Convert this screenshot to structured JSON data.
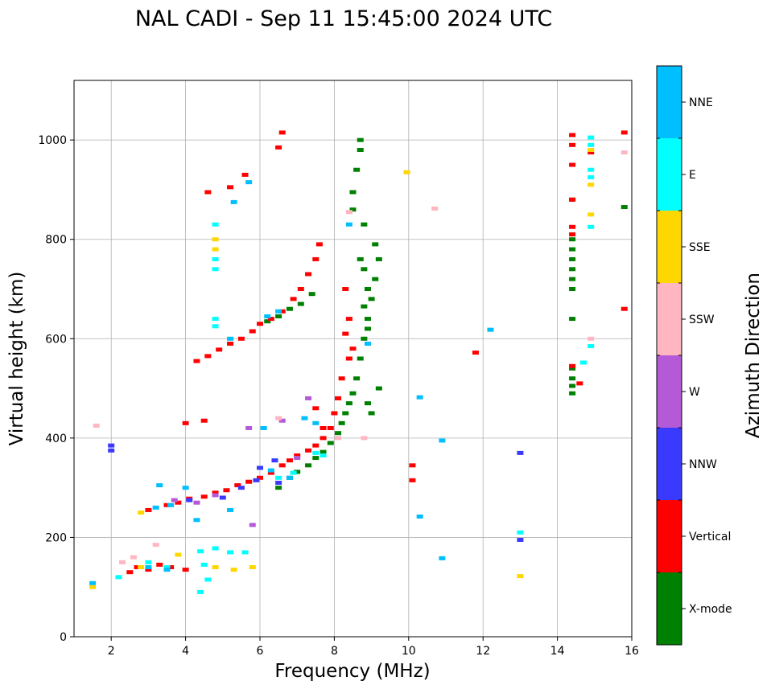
{
  "chart_data": {
    "type": "scatter",
    "title": "NAL CADI - Sep 11 15:45:00 2024 UTC",
    "xlabel": "Frequency (MHz)",
    "ylabel": "Virtual height (km)",
    "xlim": [
      1,
      16
    ],
    "ylim": [
      0,
      1120
    ],
    "xticks": [
      "2",
      "4",
      "6",
      "8",
      "10",
      "12",
      "14",
      "16"
    ],
    "yticks": [
      "0",
      "200",
      "400",
      "600",
      "800",
      "1000"
    ],
    "grid": true,
    "colorbar": {
      "label": "Azimuth Direction",
      "categories": [
        {
          "name": "X-mode",
          "color": "#008000"
        },
        {
          "name": "Vertical",
          "color": "#ff0000"
        },
        {
          "name": "NNW",
          "color": "#3a3aff"
        },
        {
          "name": "W",
          "color": "#b55ad6"
        },
        {
          "name": "SSW",
          "color": "#ffb6c1"
        },
        {
          "name": "SSE",
          "color": "#ffd700"
        },
        {
          "name": "E",
          "color": "#00ffff"
        },
        {
          "name": "NNE",
          "color": "#00bfff"
        }
      ]
    },
    "series": [
      {
        "name": "X-mode",
        "points": [
          [
            6.5,
            300
          ],
          [
            6.8,
            320
          ],
          [
            7.0,
            332
          ],
          [
            7.3,
            345
          ],
          [
            7.5,
            360
          ],
          [
            7.7,
            372
          ],
          [
            7.9,
            390
          ],
          [
            8.1,
            410
          ],
          [
            8.2,
            430
          ],
          [
            8.3,
            450
          ],
          [
            8.4,
            470
          ],
          [
            8.5,
            490
          ],
          [
            8.6,
            520
          ],
          [
            8.7,
            560
          ],
          [
            8.8,
            600
          ],
          [
            8.9,
            640
          ],
          [
            9.0,
            680
          ],
          [
            9.1,
            720
          ],
          [
            9.2,
            760
          ],
          [
            9.1,
            790
          ],
          [
            9.0,
            450
          ],
          [
            8.9,
            470
          ],
          [
            9.2,
            500
          ],
          [
            6.2,
            635
          ],
          [
            6.5,
            645
          ],
          [
            6.8,
            660
          ],
          [
            7.1,
            670
          ],
          [
            7.4,
            690
          ],
          [
            8.7,
            1000
          ],
          [
            8.7,
            980
          ],
          [
            8.6,
            940
          ],
          [
            8.5,
            895
          ],
          [
            8.5,
            860
          ],
          [
            8.8,
            830
          ],
          [
            8.7,
            760
          ],
          [
            8.8,
            740
          ],
          [
            8.9,
            700
          ],
          [
            8.8,
            665
          ],
          [
            8.9,
            620
          ],
          [
            14.4,
            700
          ],
          [
            14.4,
            720
          ],
          [
            14.4,
            740
          ],
          [
            14.4,
            760
          ],
          [
            14.4,
            780
          ],
          [
            14.4,
            800
          ],
          [
            14.4,
            880
          ],
          [
            14.4,
            640
          ],
          [
            14.4,
            540
          ],
          [
            14.4,
            520
          ],
          [
            14.4,
            505
          ],
          [
            14.4,
            490
          ],
          [
            15.8,
            865
          ]
        ]
      },
      {
        "name": "Vertical",
        "points": [
          [
            2.5,
            130
          ],
          [
            2.7,
            140
          ],
          [
            3.0,
            135
          ],
          [
            3.3,
            145
          ],
          [
            3.6,
            140
          ],
          [
            4.0,
            135
          ],
          [
            3.0,
            255
          ],
          [
            3.5,
            265
          ],
          [
            3.8,
            270
          ],
          [
            4.1,
            278
          ],
          [
            4.5,
            282
          ],
          [
            4.8,
            290
          ],
          [
            5.1,
            295
          ],
          [
            5.4,
            305
          ],
          [
            5.7,
            312
          ],
          [
            6.0,
            320
          ],
          [
            6.3,
            330
          ],
          [
            6.6,
            345
          ],
          [
            6.8,
            355
          ],
          [
            7.0,
            365
          ],
          [
            7.3,
            375
          ],
          [
            7.5,
            385
          ],
          [
            7.7,
            400
          ],
          [
            7.9,
            420
          ],
          [
            8.0,
            450
          ],
          [
            8.1,
            480
          ],
          [
            8.2,
            520
          ],
          [
            8.4,
            560
          ],
          [
            8.5,
            580
          ],
          [
            8.3,
            610
          ],
          [
            8.4,
            640
          ],
          [
            8.3,
            700
          ],
          [
            4.3,
            555
          ],
          [
            4.6,
            565
          ],
          [
            4.9,
            578
          ],
          [
            5.2,
            590
          ],
          [
            5.5,
            600
          ],
          [
            5.8,
            615
          ],
          [
            6.0,
            630
          ],
          [
            6.3,
            640
          ],
          [
            6.6,
            655
          ],
          [
            6.9,
            680
          ],
          [
            7.1,
            700
          ],
          [
            7.3,
            730
          ],
          [
            7.5,
            760
          ],
          [
            7.6,
            790
          ],
          [
            4.0,
            430
          ],
          [
            4.5,
            435
          ],
          [
            7.5,
            460
          ],
          [
            7.7,
            420
          ],
          [
            6.6,
            1015
          ],
          [
            6.5,
            985
          ],
          [
            5.6,
            930
          ],
          [
            5.2,
            905
          ],
          [
            4.6,
            895
          ],
          [
            10.1,
            345
          ],
          [
            10.1,
            315
          ],
          [
            11.8,
            572
          ],
          [
            15.8,
            660
          ],
          [
            15.8,
            1015
          ],
          [
            14.4,
            1010
          ],
          [
            14.4,
            990
          ],
          [
            14.4,
            950
          ],
          [
            14.4,
            880
          ],
          [
            14.4,
            825
          ],
          [
            14.4,
            810
          ],
          [
            14.6,
            510
          ],
          [
            14.4,
            545
          ],
          [
            14.9,
            975
          ]
        ]
      },
      {
        "name": "NNW",
        "points": [
          [
            5.0,
            280
          ],
          [
            5.5,
            300
          ],
          [
            6.0,
            340
          ],
          [
            6.5,
            310
          ],
          [
            6.4,
            355
          ],
          [
            4.1,
            275
          ],
          [
            2.0,
            385
          ],
          [
            2.0,
            375
          ],
          [
            13.0,
            370
          ],
          [
            13.0,
            195
          ],
          [
            5.9,
            315
          ]
        ]
      },
      {
        "name": "W",
        "points": [
          [
            3.7,
            275
          ],
          [
            4.8,
            285
          ],
          [
            5.7,
            420
          ],
          [
            6.6,
            435
          ],
          [
            7.0,
            360
          ],
          [
            7.3,
            480
          ],
          [
            5.8,
            225
          ],
          [
            4.3,
            270
          ]
        ]
      },
      {
        "name": "SSW",
        "points": [
          [
            2.3,
            150
          ],
          [
            2.6,
            160
          ],
          [
            3.2,
            185
          ],
          [
            6.5,
            440
          ],
          [
            8.1,
            400
          ],
          [
            8.4,
            855
          ],
          [
            10.7,
            862
          ],
          [
            8.8,
            400
          ],
          [
            14.9,
            600
          ],
          [
            15.8,
            975
          ],
          [
            1.6,
            425
          ]
        ]
      },
      {
        "name": "SSE",
        "points": [
          [
            1.5,
            100
          ],
          [
            2.8,
            140
          ],
          [
            4.8,
            140
          ],
          [
            5.3,
            135
          ],
          [
            5.8,
            140
          ],
          [
            4.8,
            780
          ],
          [
            4.8,
            800
          ],
          [
            14.9,
            910
          ],
          [
            14.9,
            850
          ],
          [
            14.9,
            980
          ],
          [
            13.0,
            122
          ],
          [
            9.95,
            935
          ],
          [
            2.8,
            250
          ],
          [
            3.8,
            165
          ]
        ]
      },
      {
        "name": "E",
        "points": [
          [
            2.2,
            120
          ],
          [
            3.0,
            150
          ],
          [
            3.5,
            140
          ],
          [
            4.4,
            172
          ],
          [
            4.8,
            178
          ],
          [
            5.2,
            170
          ],
          [
            5.6,
            170
          ],
          [
            4.5,
            145
          ],
          [
            4.8,
            760
          ],
          [
            4.8,
            740
          ],
          [
            4.8,
            640
          ],
          [
            4.8,
            625
          ],
          [
            4.8,
            830
          ],
          [
            6.5,
            320
          ],
          [
            6.9,
            330
          ],
          [
            7.5,
            370
          ],
          [
            7.7,
            365
          ],
          [
            14.9,
            1005
          ],
          [
            14.9,
            990
          ],
          [
            14.9,
            940
          ],
          [
            14.9,
            925
          ],
          [
            14.9,
            825
          ],
          [
            14.9,
            585
          ],
          [
            14.7,
            552
          ],
          [
            13.0,
            210
          ],
          [
            4.4,
            90
          ],
          [
            4.6,
            115
          ]
        ]
      },
      {
        "name": "NNE",
        "points": [
          [
            1.5,
            108
          ],
          [
            3.2,
            260
          ],
          [
            3.6,
            265
          ],
          [
            4.0,
            300
          ],
          [
            3.3,
            305
          ],
          [
            6.2,
            645
          ],
          [
            6.5,
            655
          ],
          [
            5.2,
            600
          ],
          [
            6.1,
            420
          ],
          [
            7.2,
            440
          ],
          [
            7.5,
            430
          ],
          [
            6.3,
            335
          ],
          [
            6.8,
            320
          ],
          [
            5.3,
            875
          ],
          [
            5.7,
            915
          ],
          [
            8.4,
            830
          ],
          [
            8.9,
            590
          ],
          [
            10.3,
            482
          ],
          [
            10.9,
            395
          ],
          [
            10.3,
            242
          ],
          [
            10.9,
            158
          ],
          [
            12.2,
            618
          ],
          [
            3.0,
            140
          ],
          [
            3.5,
            135
          ],
          [
            4.3,
            235
          ],
          [
            5.2,
            255
          ]
        ]
      }
    ]
  }
}
